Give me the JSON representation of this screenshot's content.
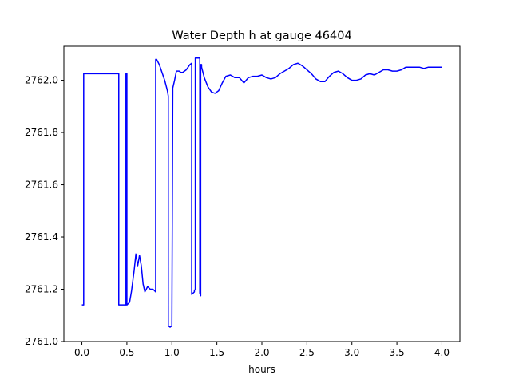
{
  "chart_data": {
    "type": "line",
    "title": "Water Depth h at gauge 46404",
    "xlabel": "hours",
    "ylabel": "",
    "xlim": [
      -0.2,
      4.2
    ],
    "ylim": [
      2761.0,
      2762.13
    ],
    "x_ticks": [
      0.0,
      0.5,
      1.0,
      1.5,
      2.0,
      2.5,
      3.0,
      3.5,
      4.0
    ],
    "x_tick_labels": [
      "0.0",
      "0.5",
      "1.0",
      "1.5",
      "2.0",
      "2.5",
      "3.0",
      "3.5",
      "4.0"
    ],
    "y_ticks": [
      2761.0,
      2761.2,
      2761.4,
      2761.6,
      2761.8,
      2762.0
    ],
    "y_tick_labels": [
      "2761.0",
      "2761.2",
      "2761.4",
      "2761.6",
      "2761.8",
      "2762.0"
    ],
    "grid": false,
    "series": [
      {
        "color": "#0000ff",
        "x": [
          0.0,
          0.02,
          0.02,
          0.41,
          0.41,
          0.49,
          0.49,
          0.5,
          0.5,
          0.53,
          0.55,
          0.58,
          0.6,
          0.62,
          0.64,
          0.66,
          0.68,
          0.7,
          0.73,
          0.76,
          0.79,
          0.82,
          0.82,
          0.83,
          0.83,
          0.86,
          0.89,
          0.92,
          0.95,
          0.96,
          0.96,
          0.98,
          1.0,
          1.01,
          1.01,
          1.03,
          1.05,
          1.08,
          1.1,
          1.12,
          1.14,
          1.16,
          1.2,
          1.22,
          1.22,
          1.25,
          1.25,
          1.26,
          1.26,
          1.28,
          1.31,
          1.31,
          1.32,
          1.32,
          1.33,
          1.33,
          1.36,
          1.4,
          1.44,
          1.48,
          1.52,
          1.56,
          1.6,
          1.65,
          1.7,
          1.75,
          1.8,
          1.85,
          1.9,
          1.95,
          2.0,
          2.05,
          2.1,
          2.15,
          2.2,
          2.25,
          2.3,
          2.35,
          2.4,
          2.45,
          2.5,
          2.55,
          2.6,
          2.65,
          2.7,
          2.75,
          2.8,
          2.85,
          2.9,
          2.95,
          3.0,
          3.05,
          3.1,
          3.15,
          3.2,
          3.25,
          3.3,
          3.35,
          3.4,
          3.45,
          3.5,
          3.55,
          3.6,
          3.65,
          3.7,
          3.75,
          3.8,
          3.85,
          3.9,
          3.95,
          4.0
        ],
        "y": [
          2761.14,
          2761.14,
          2762.025,
          2762.025,
          2761.14,
          2761.14,
          2762.025,
          2762.025,
          2761.14,
          2761.15,
          2761.19,
          2761.27,
          2761.335,
          2761.29,
          2761.33,
          2761.29,
          2761.22,
          2761.19,
          2761.21,
          2761.2,
          2761.2,
          2761.19,
          2762.08,
          2762.08,
          2762.08,
          2762.06,
          2762.03,
          2762.0,
          2761.96,
          2761.94,
          2761.06,
          2761.055,
          2761.06,
          2761.96,
          2761.97,
          2762.0,
          2762.035,
          2762.035,
          2762.03,
          2762.03,
          2762.035,
          2762.04,
          2762.06,
          2762.065,
          2761.18,
          2761.19,
          2761.195,
          2761.2,
          2762.085,
          2762.085,
          2762.085,
          2761.185,
          2761.175,
          2762.06,
          2762.06,
          2762.05,
          2762.01,
          2761.975,
          2761.955,
          2761.95,
          2761.96,
          2761.99,
          2762.015,
          2762.02,
          2762.01,
          2762.01,
          2761.99,
          2762.01,
          2762.015,
          2762.015,
          2762.02,
          2762.01,
          2762.005,
          2762.01,
          2762.025,
          2762.035,
          2762.045,
          2762.06,
          2762.065,
          2762.055,
          2762.04,
          2762.025,
          2762.005,
          2761.995,
          2761.995,
          2762.015,
          2762.03,
          2762.035,
          2762.025,
          2762.01,
          2762.0,
          2762.0,
          2762.005,
          2762.02,
          2762.025,
          2762.02,
          2762.03,
          2762.04,
          2762.04,
          2762.035,
          2762.035,
          2762.04,
          2762.05,
          2762.05,
          2762.05,
          2762.05,
          2762.045,
          2762.05,
          2762.05,
          2762.05,
          2762.05
        ]
      }
    ]
  }
}
